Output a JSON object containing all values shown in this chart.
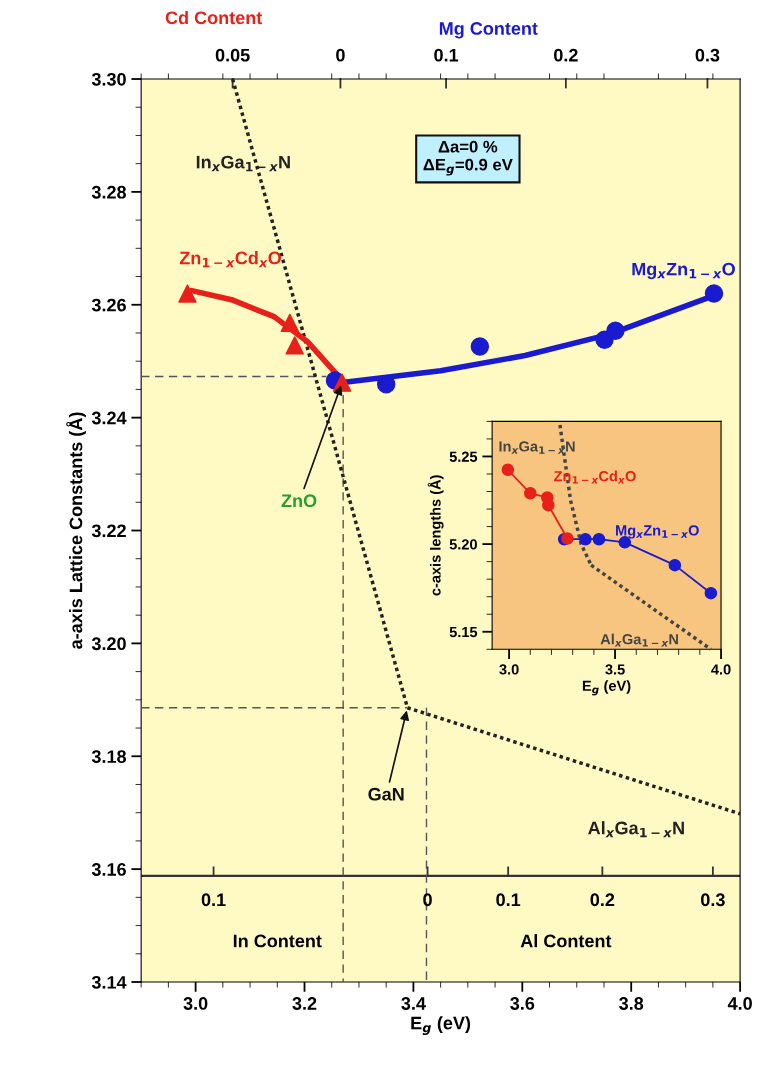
{
  "chart_data": [
    {
      "type": "line",
      "xlabel": "E$_{g}$ (eV)",
      "ylabel": "a-axis Lattice Constants (Å)",
      "xlim": [
        2.9,
        4.0
      ],
      "ylim": [
        3.14,
        3.3
      ],
      "xticks": [
        {
          "value": 3.0,
          "label": "3.0"
        },
        {
          "value": 3.2,
          "label": "3.2"
        },
        {
          "value": 3.4,
          "label": "3.4"
        },
        {
          "value": 3.6,
          "label": "3.6"
        },
        {
          "value": 3.8,
          "label": "3.8"
        },
        {
          "value": 4.0,
          "label": "4.0"
        }
      ],
      "yticks": [
        3.14,
        3.16,
        3.18,
        {
          "value": 3.2,
          "label": "3.20"
        },
        3.22,
        3.24,
        3.26,
        3.28,
        {
          "value": 3.3,
          "label": "3.30"
        }
      ],
      "grid": false,
      "legend": false,
      "series": [
        {
          "name": "Zn$_{1−x}$Cd$_{x}$O",
          "type": "scatter",
          "marker": "triangle",
          "color": "#e8201a",
          "x": [
            2.985,
            3.173,
            3.182,
            3.269
          ],
          "values": [
            3.262,
            3.2568,
            3.2528,
            3.2462
          ]
        },
        {
          "type": "line",
          "color": "#e8201a",
          "x": [
            2.993,
            3.066,
            3.144,
            3.205,
            3.273
          ],
          "values": [
            3.2625,
            3.2609,
            3.2579,
            3.2535,
            3.2462
          ]
        },
        {
          "name": "Mg$_{x}$Zn$_{1−x}$O",
          "type": "scatter",
          "marker": "circle",
          "color": "#1a1ad0",
          "x": [
            3.256,
            3.35,
            3.522,
            3.751,
            3.771,
            3.952
          ],
          "values": [
            3.2466,
            3.2459,
            3.2526,
            3.2538,
            3.2554,
            3.262
          ]
        },
        {
          "type": "line",
          "color": "#1a1ad0",
          "x": [
            3.266,
            3.45,
            3.605,
            3.758,
            3.943
          ],
          "values": [
            3.2462,
            3.2483,
            3.251,
            3.2547,
            3.2613
          ]
        },
        {
          "name": "In$_{x}$Ga$_{1−x}$N",
          "type": "line",
          "line_style": "dotted",
          "color": "#222222",
          "x": [
            3.068,
            3.389
          ],
          "values": [
            3.3,
            3.1886
          ]
        },
        {
          "name": "Al$_{x}$Ga$_{1−x}$N",
          "type": "line",
          "line_style": "dotted",
          "color": "#222222",
          "x": [
            3.389,
            4.0
          ],
          "values": [
            3.1886,
            3.1698
          ]
        },
        {
          "type": "line",
          "line_style": "dashed",
          "color": "#555555",
          "x": [
            2.9,
            3.24
          ],
          "values": [
            3.2473,
            3.2473
          ]
        },
        {
          "type": "line",
          "line_style": "dashed",
          "color": "#555555",
          "x": [
            3.271,
            3.271
          ],
          "values": [
            3.244,
            3.14
          ]
        },
        {
          "type": "line",
          "line_style": "dashed",
          "color": "#555555",
          "x": [
            2.9,
            3.389
          ],
          "values": [
            3.1886,
            3.1886
          ]
        },
        {
          "type": "line",
          "line_style": "dashed",
          "color": "#555555",
          "x": [
            3.424,
            3.424
          ],
          "values": [
            3.1886,
            3.14
          ]
        }
      ],
      "ref_lines": [
        {
          "axis": "y",
          "value": 3.1588,
          "color": "#333333",
          "line_style": "solid"
        }
      ],
      "annotations": [
        "Cd Content",
        "Mg Content",
        "Δa=0 %\nΔE$_{g}$=0.9 eV",
        {
          "text": "ZnO",
          "x": 3.269,
          "y": 3.2462
        },
        {
          "text": "GaN",
          "x": 3.389,
          "y": 3.1886
        },
        {
          "text": "0.1",
          "x": 3.033,
          "y": 3.1588
        },
        {
          "text": "0",
          "x": 3.426,
          "y": 3.1588
        },
        {
          "text": "0.1",
          "x": 3.574,
          "y": 3.1588
        },
        {
          "text": "0.2",
          "x": 3.747,
          "y": 3.1588
        },
        {
          "text": "0.3",
          "x": 3.95,
          "y": 3.1588
        },
        "In Content",
        "Al Content",
        "0.05",
        "0",
        "0.1",
        "0.2",
        "0.3"
      ]
    },
    {
      "type": "line",
      "xlabel": "E$_{g}$ (eV)",
      "ylabel": "c-axis lengths (Å)",
      "xlim": [
        2.92,
        4.0
      ],
      "ylim": [
        5.14,
        5.27
      ],
      "xticks": [
        {
          "value": 3.0,
          "label": "3.0"
        },
        {
          "value": 3.5,
          "label": "3.5"
        },
        {
          "value": 4.0,
          "label": "4.0"
        }
      ],
      "yticks": [
        5.15,
        {
          "value": 5.2,
          "label": "5.20"
        },
        5.25
      ],
      "grid": false,
      "legend": false,
      "series": [
        {
          "name": "Zn$_{1−x}$Cd$_{x}$O",
          "type": "line",
          "marker": "circle",
          "color": "#e8201a",
          "x": [
            2.994,
            3.1,
            3.18,
            3.185,
            3.275
          ],
          "values": [
            5.2424,
            5.229,
            5.2266,
            5.2222,
            5.2032
          ]
        },
        {
          "name": "Mg$_{x}$Zn$_{1−x}$O",
          "type": "line",
          "marker": "circle",
          "color": "#1a1ad0",
          "x": [
            3.26,
            3.36,
            3.424,
            3.546,
            3.782,
            3.952
          ],
          "values": [
            5.2028,
            5.2028,
            5.2028,
            5.201,
            5.188,
            5.172
          ]
        },
        {
          "name": "In$_{x}$Ga$_{1−x}$N",
          "type": "line",
          "line_style": "dotted",
          "color": "#444444",
          "x": [
            3.24,
            3.29,
            3.34,
            3.387
          ],
          "values": [
            5.268,
            5.225,
            5.2,
            5.188
          ]
        },
        {
          "name": "Al$_{x}$Ga$_{1−x}$N",
          "type": "line",
          "line_style": "dotted",
          "color": "#444444",
          "x": [
            3.387,
            3.952
          ],
          "values": [
            5.188,
            5.14
          ]
        }
      ]
    }
  ]
}
